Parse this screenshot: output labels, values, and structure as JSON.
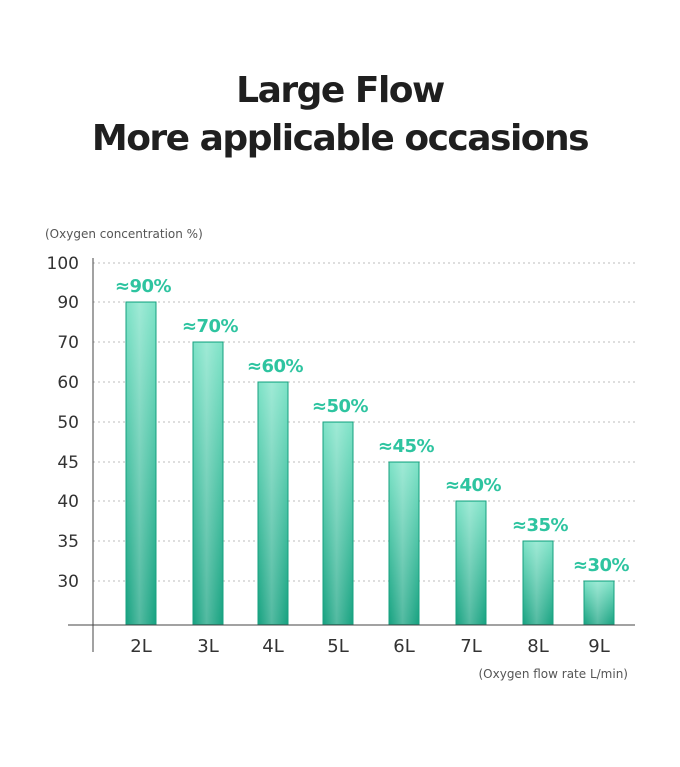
{
  "page": {
    "title_line1": "Large Flow",
    "title_line2": "More applicable occasions"
  },
  "colors": {
    "accent": "#2ec4a0",
    "bar_top": "#7fe3c8",
    "bar_bottom": "#1aa382",
    "bar_border": "#16a07f",
    "axis": "#444444",
    "grid": "#bdbdbd"
  },
  "chart_data": {
    "type": "bar",
    "categories": [
      "2L",
      "3L",
      "4L",
      "5L",
      "6L",
      "7L",
      "8L",
      "9L"
    ],
    "values": [
      90,
      70,
      60,
      50,
      45,
      40,
      35,
      30
    ],
    "data_labels": [
      "≈90%",
      "≈70%",
      "≈60%",
      "≈50%",
      "≈45%",
      "≈40%",
      "≈35%",
      "≈30%"
    ],
    "y_ticks": [
      "100",
      "90",
      "70",
      "60",
      "50",
      "45",
      "40",
      "35",
      "30"
    ],
    "ylabel": "(Oxygen concentration %)",
    "xlabel": "(Oxygen flow rate L/min)",
    "y_scale": "non-linear categorical ticks",
    "grid": true,
    "grid_style": "dotted horizontal"
  }
}
